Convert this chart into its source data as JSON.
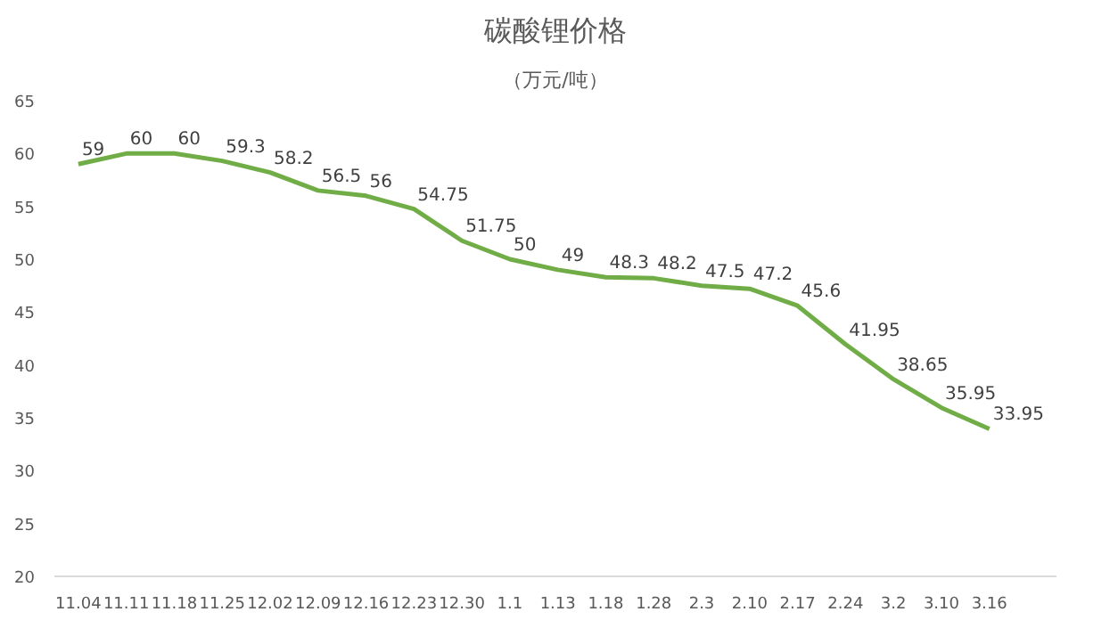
{
  "chart_data": {
    "type": "line",
    "title": "碳酸锂价格",
    "subtitle": "（万元/吨）",
    "categories": [
      "11.04",
      "11.11",
      "11.18",
      "11.25",
      "12.02",
      "12.09",
      "12.16",
      "12.23",
      "12.30",
      "1.1",
      "1.13",
      "1.18",
      "1.28",
      "2.3",
      "2.10",
      "2.17",
      "2.24",
      "3.2",
      "3.10",
      "3.16"
    ],
    "series": [
      {
        "color": "#70ad47",
        "values": [
          59,
          60,
          60,
          59.3,
          58.2,
          56.5,
          56,
          54.75,
          51.75,
          50,
          49,
          48.3,
          48.2,
          47.5,
          47.2,
          45.6,
          41.95,
          38.65,
          35.95,
          33.95
        ]
      }
    ],
    "ylim": [
      20,
      65
    ],
    "yticks": [
      20,
      25,
      30,
      35,
      40,
      45,
      50,
      55,
      60,
      65
    ],
    "data_labels": true,
    "grid": false,
    "marker": "none",
    "line_style": "solid"
  }
}
